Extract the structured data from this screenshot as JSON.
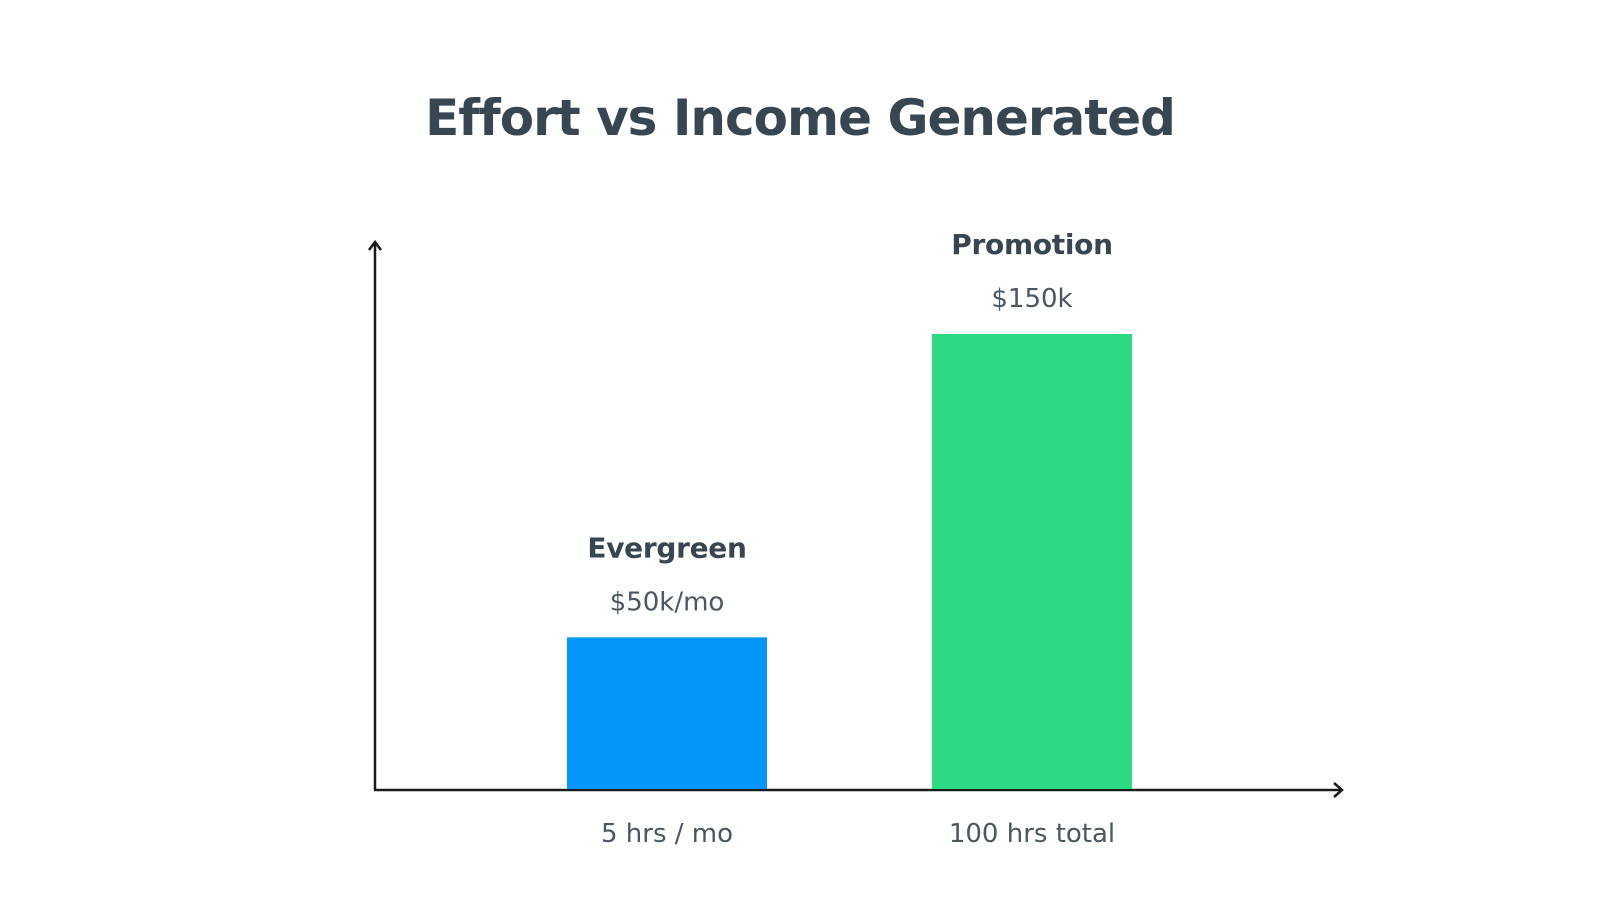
{
  "chart_data": {
    "type": "bar",
    "title": "Effort vs Income Generated",
    "xlabel": "",
    "ylabel": "",
    "categories": [
      "5 hrs / mo",
      "100 hrs total"
    ],
    "bars": [
      {
        "name": "Evergreen",
        "value": 50,
        "value_label": "$50k/mo",
        "x_label": "5 hrs / mo",
        "color": "#0596fb"
      },
      {
        "name": "Promotion",
        "value": 150,
        "value_label": "$150k",
        "x_label": "100 hrs total",
        "color": "#2ed986"
      }
    ],
    "values": [
      50,
      150
    ],
    "ylim": [
      0,
      180
    ],
    "grid": false,
    "legend": "none"
  }
}
